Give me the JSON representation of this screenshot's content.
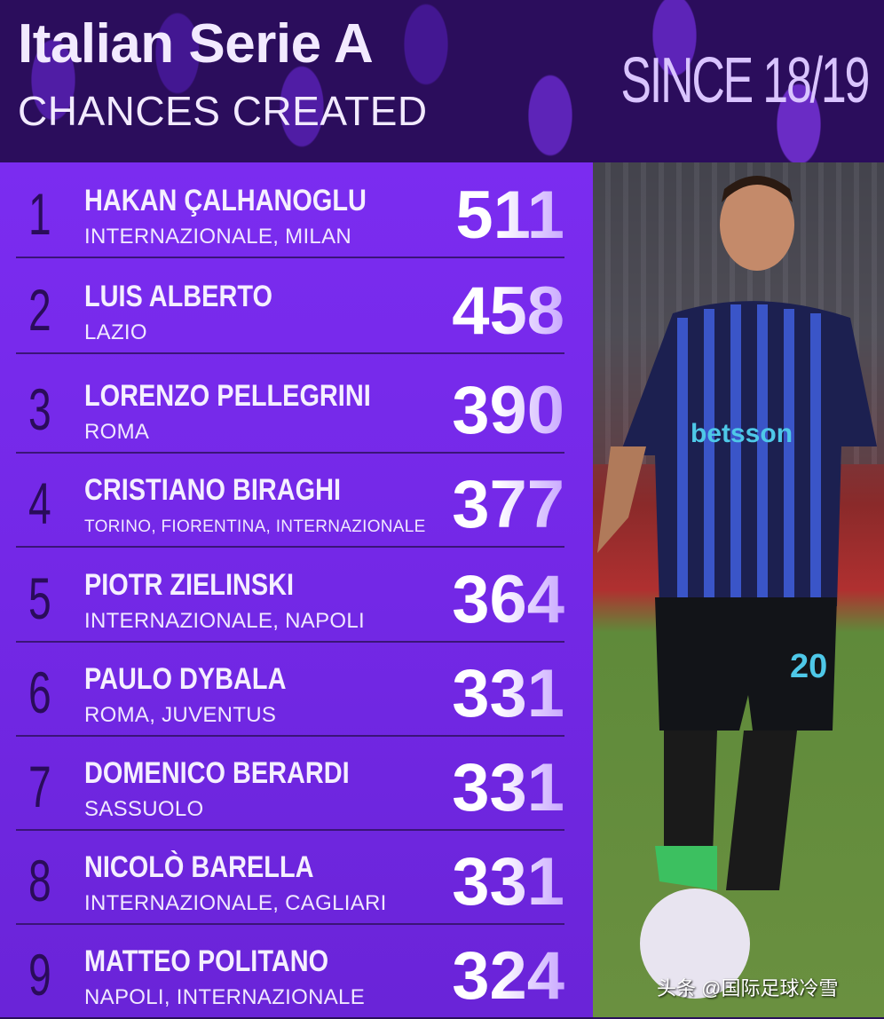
{
  "header": {
    "title": "Italian Serie A",
    "subtitle": "CHANCES CREATED",
    "since": "SINCE 18/19"
  },
  "rows": [
    {
      "rank": "1",
      "name": "HAKAN ÇALHANOGLU",
      "clubs": "INTERNAZIONALE, MILAN",
      "value": "511"
    },
    {
      "rank": "2",
      "name": "LUIS ALBERTO",
      "clubs": "LAZIO",
      "value": "458"
    },
    {
      "rank": "3",
      "name": "LORENZO PELLEGRINI",
      "clubs": "ROMA",
      "value": "390"
    },
    {
      "rank": "4",
      "name": "CRISTIANO BIRAGHI",
      "clubs": "TORINO, FIORENTINA, INTERNAZIONALE",
      "value": "377"
    },
    {
      "rank": "5",
      "name": "PIOTR ZIELINSKI",
      "clubs": "INTERNAZIONALE, NAPOLI",
      "value": "364"
    },
    {
      "rank": "6",
      "name": "PAULO DYBALA",
      "clubs": "ROMA, JUVENTUS",
      "value": "331"
    },
    {
      "rank": "7",
      "name": "DOMENICO BERARDI",
      "clubs": "SASSUOLO",
      "value": "331"
    },
    {
      "rank": "8",
      "name": "NICOLÒ BARELLA",
      "clubs": "INTERNAZIONALE, CAGLIARI",
      "value": "331"
    },
    {
      "rank": "9",
      "name": "MATTEO POLITANO",
      "clubs": "NAPOLI, INTERNAZIONALE",
      "value": "324"
    }
  ],
  "photo": {
    "shirt_sponsor": "betsson",
    "shirt_number": "20"
  },
  "watermark": "头条 @国际足球冷雪",
  "colors": {
    "header_bg": "#2b0d5c",
    "panel_bg": "#7b2cf0",
    "rank": "#2a0c5a"
  }
}
